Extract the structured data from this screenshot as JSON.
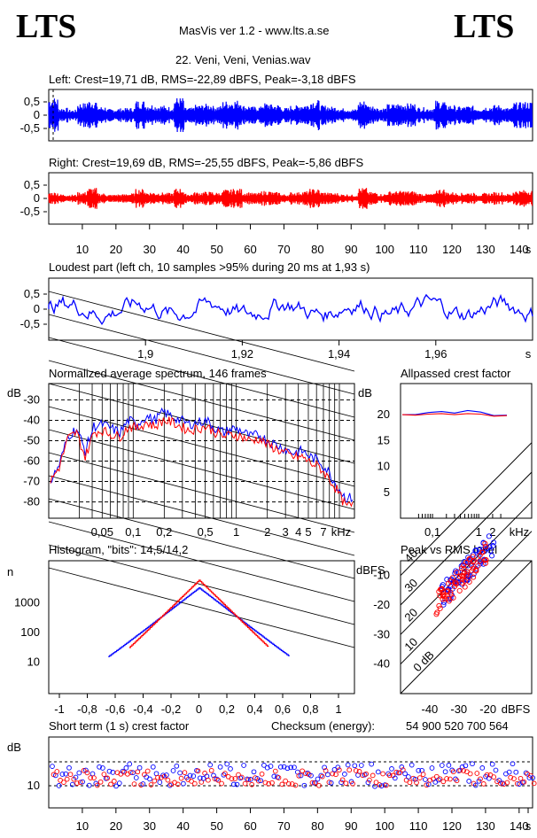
{
  "header": {
    "brand_left": "LTS",
    "brand_right": "LTS",
    "app_title": "MasVis ver 1.2 - www.lts.a.se",
    "file_title": "22. Veni, Veni, Venias.wav"
  },
  "panels": {
    "left_wave_title": "Left: Crest=19,71 dB, RMS=-22,89 dBFS, Peak=-3,18 dBFS",
    "right_wave_title": "Right: Crest=19,69 dB, RMS=-25,55 dBFS, Peak=-5,86 dBFS",
    "loudest_title": "Loudest part (left  ch, 10 samples >95% during 20 ms at 1,93 s)",
    "spectrum_title": "Normalized average spectrum, 146 frames",
    "allpass_title": "Allpassed crest factor",
    "histogram_title": "Histogram, \"bits\": 14,5/14,2",
    "peak_rms_title": "Peak vs RMS level",
    "short_term_title": "Short term (1 s) crest factor",
    "checksum_label": "Checksum (energy):",
    "checksum_value": "54 900 520 700 564"
  },
  "colors": {
    "left": "#0000ff",
    "right": "#ff0000",
    "axis": "#000000"
  },
  "chart_data": [
    {
      "id": "left_waveform",
      "type": "area",
      "x_range": [
        0,
        144
      ],
      "ylim": [
        -1,
        1
      ],
      "y_ticks": [
        "0,5",
        "0",
        "-0,5"
      ],
      "envelope_peaks": [
        0.72,
        0.3,
        0.22,
        0.5,
        0.62,
        0.35,
        0.25,
        0.28,
        0.3,
        0.6,
        0.45,
        0.4,
        0.35,
        0.72,
        0.3,
        0.42,
        0.46,
        0.38,
        0.58,
        0.62,
        0.4,
        0.35,
        0.5,
        0.44,
        0.3,
        0.4,
        0.46,
        0.62,
        0.4,
        0.35,
        0.28,
        0.25,
        0.6,
        0.4,
        0.3,
        0.45,
        0.5,
        0.48,
        0.32,
        0.3,
        0.6,
        0.42,
        0.35,
        0.38,
        0.3,
        0.36,
        0.42,
        0.3,
        0.52,
        0.55
      ]
    },
    {
      "id": "right_waveform",
      "type": "area",
      "x_range": [
        0,
        144
      ],
      "ylim": [
        -1,
        1
      ],
      "y_ticks": [
        "0,5",
        "0",
        "-0,5"
      ],
      "x_ticks": [
        "10",
        "20",
        "30",
        "40",
        "50",
        "60",
        "70",
        "80",
        "90",
        "100",
        "110",
        "120",
        "130",
        "140",
        "s"
      ],
      "envelope_peaks": [
        0.3,
        0.2,
        0.18,
        0.3,
        0.5,
        0.25,
        0.18,
        0.2,
        0.24,
        0.45,
        0.3,
        0.28,
        0.26,
        0.48,
        0.22,
        0.3,
        0.32,
        0.28,
        0.42,
        0.46,
        0.3,
        0.26,
        0.36,
        0.3,
        0.2,
        0.3,
        0.34,
        0.45,
        0.3,
        0.26,
        0.2,
        0.18,
        0.5,
        0.3,
        0.22,
        0.34,
        0.36,
        0.35,
        0.24,
        0.22,
        0.45,
        0.3,
        0.26,
        0.28,
        0.22,
        0.26,
        0.3,
        0.22,
        0.38,
        0.4
      ]
    },
    {
      "id": "loudest_part",
      "type": "line",
      "x_range": [
        1.88,
        1.98
      ],
      "ylim": [
        -1,
        1
      ],
      "y_ticks": [
        "0,5",
        "0",
        "-0,5"
      ],
      "x_ticks": [
        "1,9",
        "1,92",
        "1,94",
        "1,96",
        "s"
      ]
    },
    {
      "id": "spectrum",
      "type": "line",
      "y_ticks": [
        "-30",
        "-40",
        "-50",
        "-60",
        "-70",
        "-80"
      ],
      "ylabel": "dB",
      "x_ticks": [
        "0,05",
        "0,1",
        "0,2",
        "0,5",
        "1",
        "2",
        "3",
        "4",
        "5",
        "7",
        "kHz"
      ],
      "series": [
        {
          "name": "left",
          "values": [
            -70,
            -62,
            -48,
            -44,
            -55,
            -43,
            -42,
            -44,
            -46,
            -40,
            -42,
            -38,
            -40,
            -36,
            -38,
            -40,
            -42,
            -41,
            -40,
            -44,
            -46,
            -44,
            -45,
            -48,
            -47,
            -50,
            -52,
            -54,
            -56,
            -55,
            -58,
            -60,
            -65,
            -72,
            -78
          ]
        },
        {
          "name": "right",
          "values": [
            -70,
            -63,
            -49,
            -46,
            -58,
            -46,
            -45,
            -47,
            -48,
            -43,
            -44,
            -41,
            -43,
            -40,
            -41,
            -43,
            -45,
            -44,
            -43,
            -46,
            -48,
            -47,
            -48,
            -50,
            -49,
            -52,
            -54,
            -56,
            -58,
            -58,
            -61,
            -63,
            -68,
            -74,
            -82
          ]
        }
      ]
    },
    {
      "id": "allpassed_crest",
      "type": "line",
      "ylabel": "dB",
      "y_ticks": [
        "20",
        "15",
        "10",
        "5"
      ],
      "x_ticks": [
        "0,1",
        "1",
        "2",
        "kHz"
      ],
      "series": [
        {
          "name": "left",
          "values": [
            20,
            20,
            20.4,
            20.6,
            20.3,
            20.8,
            20.5,
            19.8,
            19.9
          ]
        },
        {
          "name": "right",
          "values": [
            20,
            19.9,
            20.1,
            20.2,
            20,
            20.2,
            20.1,
            19.7,
            19.8
          ]
        }
      ]
    },
    {
      "id": "histogram",
      "type": "line",
      "ylabel": "n",
      "y_ticks": [
        "1000",
        "100",
        "10"
      ],
      "x_ticks": [
        "-1",
        "-0,8",
        "-0,6",
        "-0,4",
        "-0,2",
        "0",
        "0,2",
        "0,4",
        "0,6",
        "0,8",
        "1"
      ],
      "peak_left": 3200,
      "peak_right": 5800
    },
    {
      "id": "peak_vs_rms",
      "type": "scatter",
      "x_label": "dBFS",
      "y_label": "dBFS",
      "x_ticks": [
        "-40",
        "-30",
        "-20",
        "dBFS"
      ],
      "y_ticks": [
        "-10",
        "-20",
        "-30",
        "-40"
      ],
      "diagonal_labels": [
        "40",
        "30",
        "20",
        "10",
        "0 dB"
      ]
    },
    {
      "id": "short_term_crest",
      "type": "scatter",
      "ylabel": "dB",
      "y_ticks": [
        "10"
      ],
      "x_ticks": [
        "10",
        "20",
        "30",
        "40",
        "50",
        "60",
        "70",
        "80",
        "90",
        "100",
        "110",
        "120",
        "130",
        "140",
        "s"
      ]
    }
  ]
}
